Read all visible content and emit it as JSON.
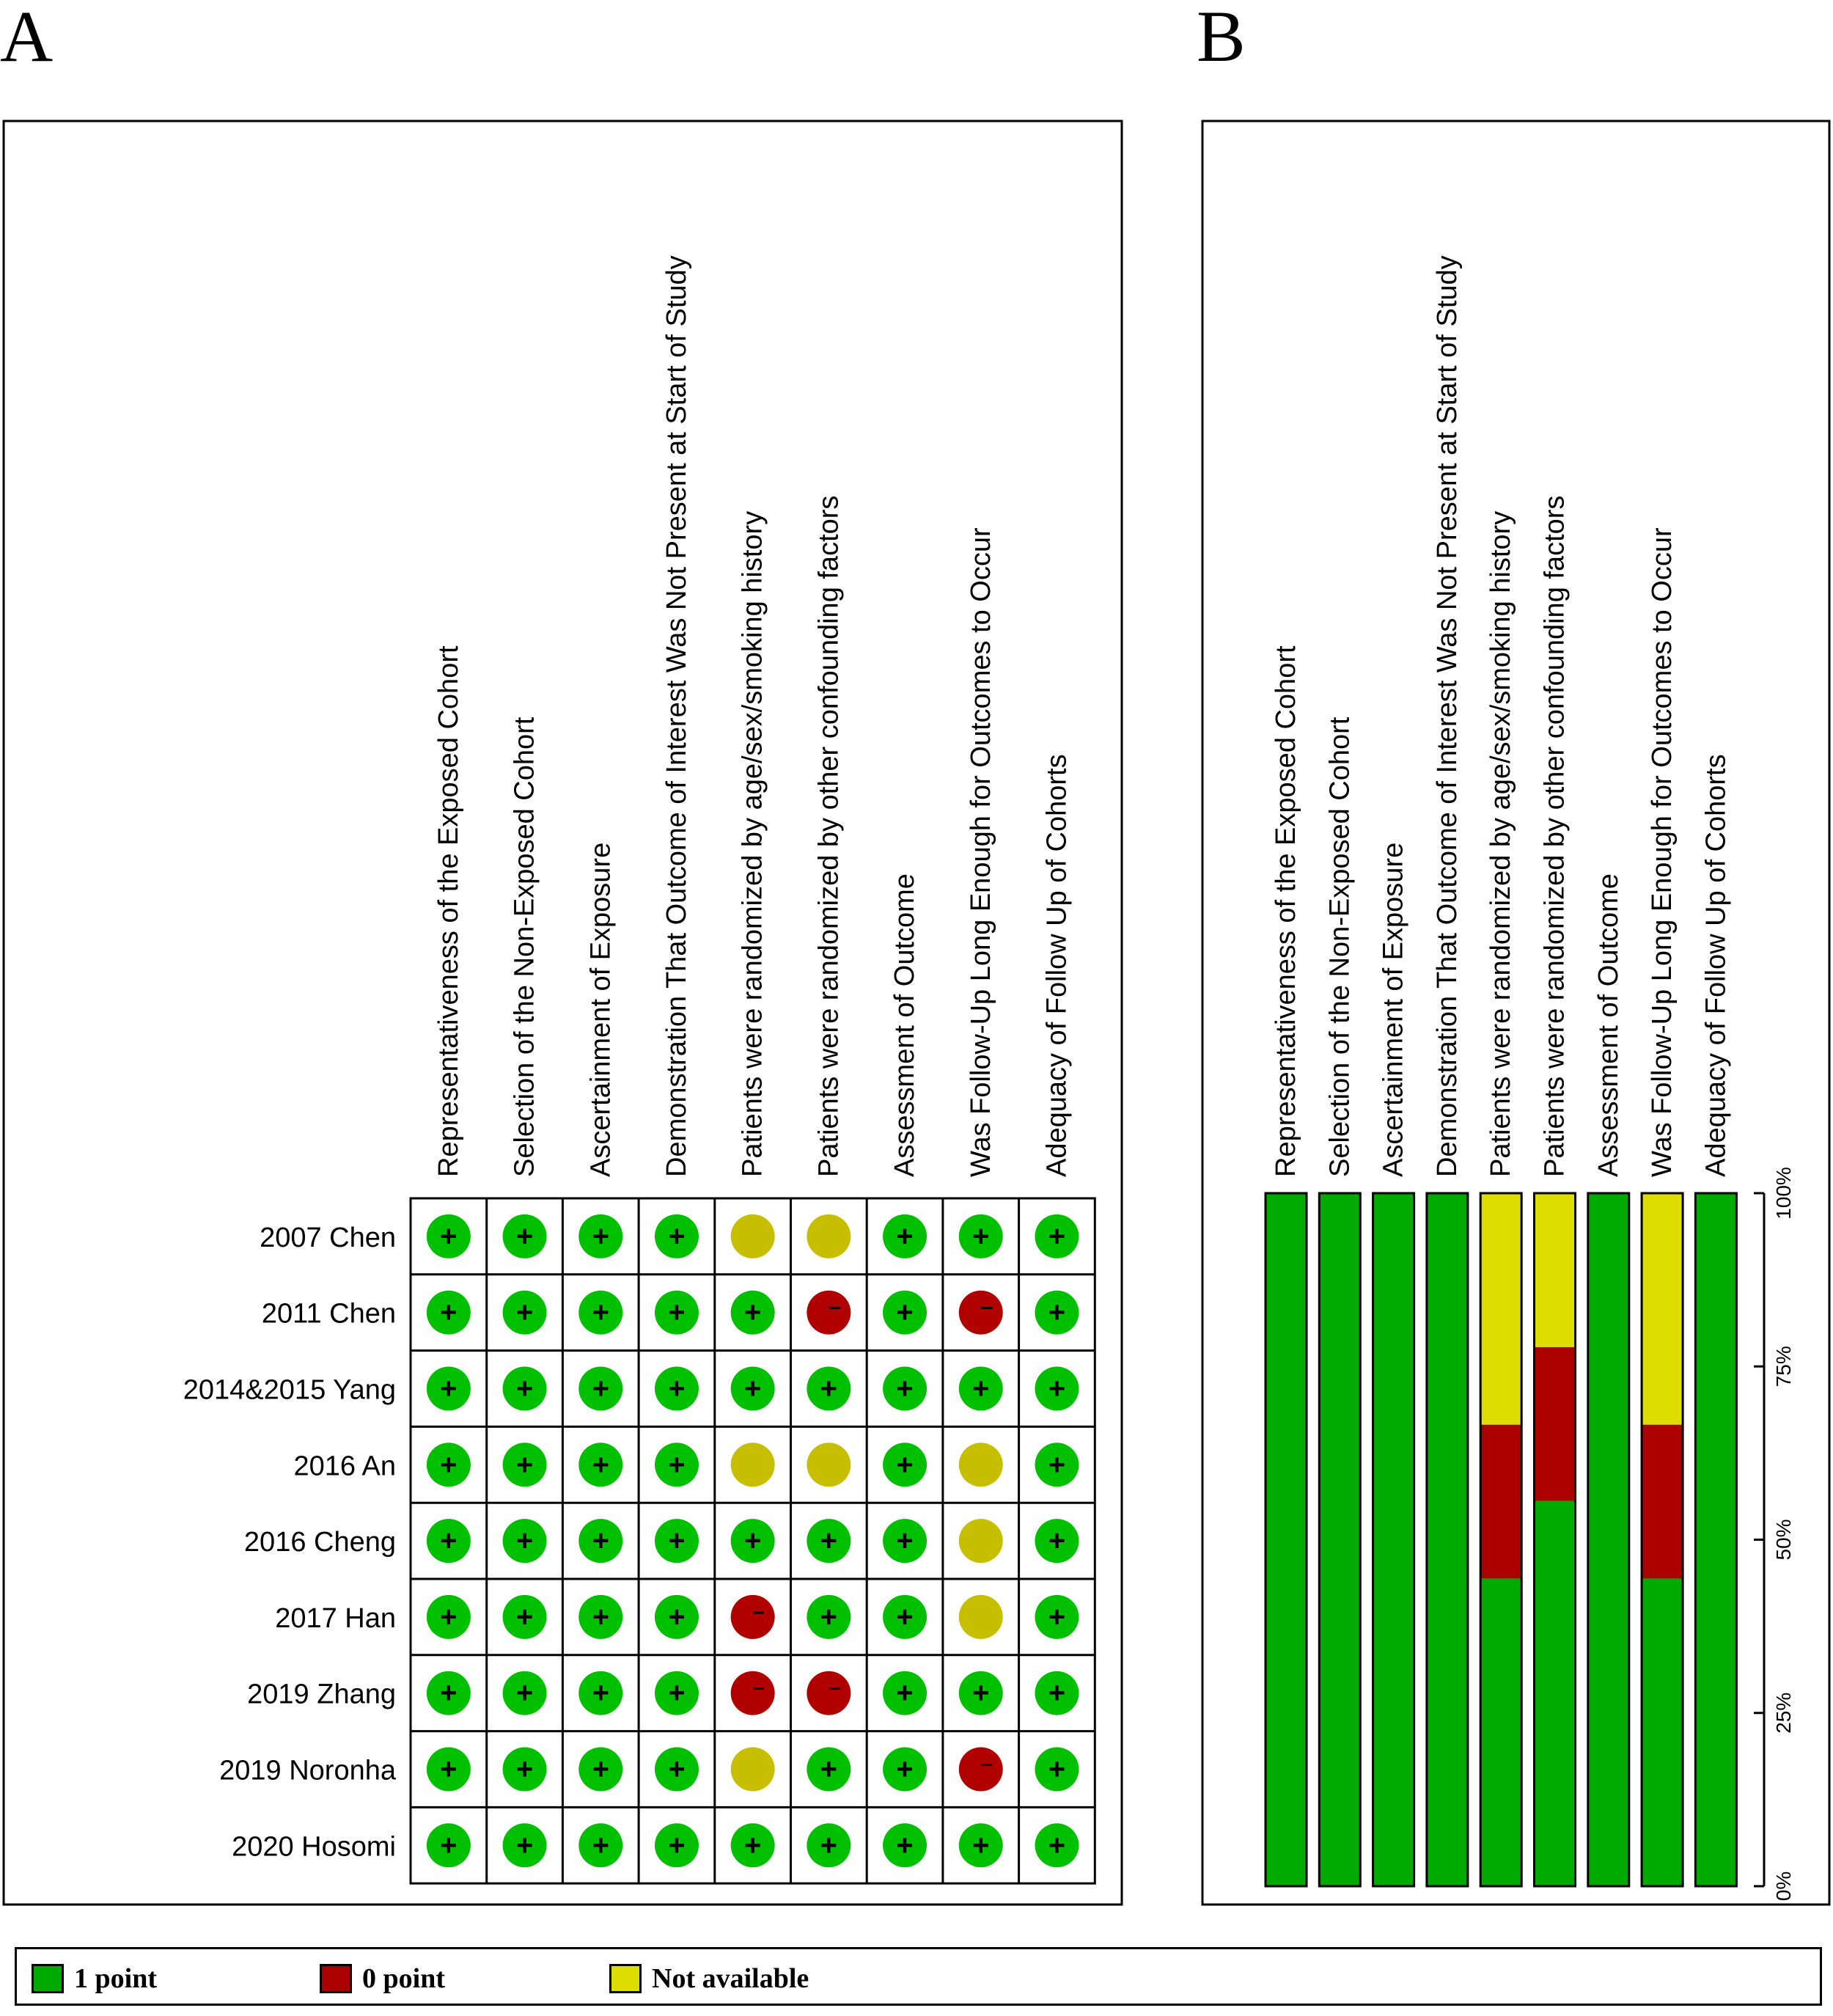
{
  "panels": {
    "a_label": "A",
    "b_label": "B"
  },
  "chart_data": [
    {
      "type": "table",
      "panel": "A",
      "columns": [
        "Representativeness of the Exposed Cohort",
        "Selection of the Non-Exposed Cohort",
        "Ascertainment of Exposure",
        "Demonstration That Outcome of Interest Was Not Present at Start of Study",
        "Patients were randomized by age/sex/smoking history",
        "Patients were randomized by other confounding factors",
        "Assessment of Outcome",
        "Was Follow-Up Long Enough for Outcomes to Occur",
        "Adequacy of Follow Up of Cohorts"
      ],
      "rows": [
        {
          "study": "2007 Chen",
          "ratings": [
            "1",
            "1",
            "1",
            "1",
            "NA",
            "NA",
            "1",
            "1",
            "1"
          ]
        },
        {
          "study": "2011 Chen",
          "ratings": [
            "1",
            "1",
            "1",
            "1",
            "1",
            "0",
            "1",
            "0",
            "1"
          ]
        },
        {
          "study": "2014&2015 Yang",
          "ratings": [
            "1",
            "1",
            "1",
            "1",
            "1",
            "1",
            "1",
            "1",
            "1"
          ]
        },
        {
          "study": "2016 An",
          "ratings": [
            "1",
            "1",
            "1",
            "1",
            "NA",
            "NA",
            "1",
            "NA",
            "1"
          ]
        },
        {
          "study": "2016 Cheng",
          "ratings": [
            "1",
            "1",
            "1",
            "1",
            "1",
            "1",
            "1",
            "NA",
            "1"
          ]
        },
        {
          "study": "2017 Han",
          "ratings": [
            "1",
            "1",
            "1",
            "1",
            "0",
            "1",
            "1",
            "NA",
            "1"
          ]
        },
        {
          "study": "2019 Zhang",
          "ratings": [
            "1",
            "1",
            "1",
            "1",
            "0",
            "0",
            "1",
            "1",
            "1"
          ]
        },
        {
          "study": "2019 Noronha",
          "ratings": [
            "1",
            "1",
            "1",
            "1",
            "NA",
            "1",
            "1",
            "0",
            "1"
          ]
        },
        {
          "study": "2020 Hosomi",
          "ratings": [
            "1",
            "1",
            "1",
            "1",
            "1",
            "1",
            "1",
            "1",
            "1"
          ]
        }
      ],
      "symbols": {
        "plus": "+",
        "minus": "–"
      }
    },
    {
      "type": "bar",
      "panel": "B",
      "stacked": true,
      "categories": [
        "Representativeness of the Exposed Cohort",
        "Selection of the Non-Exposed Cohort",
        "Ascertainment of Exposure",
        "Demonstration That Outcome of Interest Was Not Present at Start of Study",
        "Patients were randomized by age/sex/smoking history",
        "Patients were randomized by other confounding factors",
        "Assessment of Outcome",
        "Was Follow-Up Long Enough for Outcomes to Occur",
        "Adequacy of Follow Up of Cohorts"
      ],
      "series": [
        {
          "name": "1 point",
          "values": [
            100,
            100,
            100,
            100,
            44.4,
            55.6,
            100,
            44.4,
            100
          ]
        },
        {
          "name": "0 point",
          "values": [
            0,
            0,
            0,
            0,
            22.2,
            22.2,
            0,
            22.2,
            0
          ]
        },
        {
          "name": "Not available",
          "values": [
            0,
            0,
            0,
            0,
            33.3,
            22.2,
            0,
            33.3,
            0
          ]
        }
      ],
      "ylim": [
        0,
        100
      ],
      "yticks": [
        "0%",
        "25%",
        "50%",
        "75%",
        "100%"
      ]
    }
  ],
  "legend": [
    {
      "label": "1 point",
      "color": "#00aa00"
    },
    {
      "label": "0 point",
      "color": "#aa0000"
    },
    {
      "label": "Not available",
      "color": "#dddd00"
    }
  ],
  "colors": {
    "good": "#00c000",
    "bad": "#b00000",
    "unclear": "#c8be00",
    "bar_good": "#00aa00",
    "bar_bad": "#aa0000",
    "bar_unclear": "#dddd00"
  }
}
